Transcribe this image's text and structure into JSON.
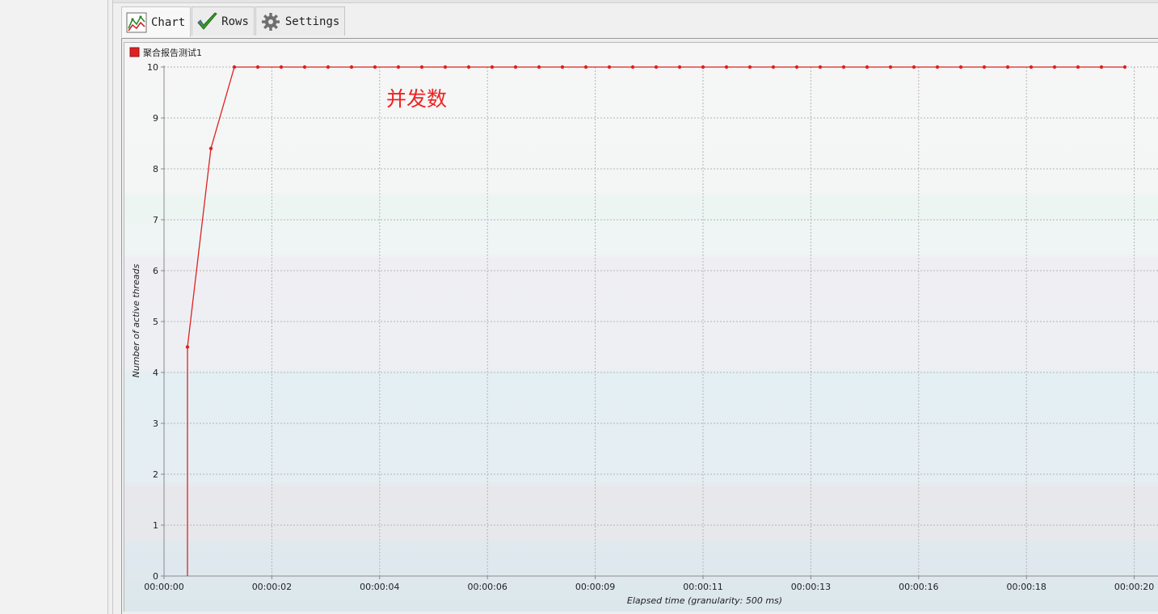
{
  "tabs": [
    {
      "label": "Chart",
      "icon": "chart-icon",
      "active": true
    },
    {
      "label": "Rows",
      "icon": "checkmark-icon",
      "active": false
    },
    {
      "label": "Settings",
      "icon": "gear-icon",
      "active": false
    }
  ],
  "colors": {
    "series": "#dd2222",
    "annotation": "#ee2222",
    "grid": "#b4b4b4"
  },
  "chart_data": {
    "type": "line",
    "series": [
      {
        "name": "聚合报告测试1",
        "x_ms": [
          500,
          500,
          1000,
          1500,
          2000,
          2500,
          3000,
          3500,
          4000,
          4500,
          5000,
          5500,
          6000,
          6500,
          7000,
          7500,
          8000,
          8500,
          9000,
          9500,
          10000,
          10500,
          11000,
          11500,
          12000,
          12500,
          13000,
          13500,
          14000,
          14500,
          15000,
          15500,
          16000,
          16500,
          17000,
          17500,
          18000,
          18500,
          19000,
          19500,
          20000,
          20500
        ],
        "values": [
          0,
          4.5,
          8.4,
          10,
          10,
          10,
          10,
          10,
          10,
          10,
          10,
          10,
          10,
          10,
          10,
          10,
          10,
          10,
          10,
          10,
          10,
          10,
          10,
          10,
          10,
          10,
          10,
          10,
          10,
          10,
          10,
          10,
          10,
          10,
          10,
          10,
          10,
          10,
          10,
          10,
          10,
          10
        ],
        "markers": [
          false,
          true,
          true,
          true,
          true,
          true,
          true,
          true,
          true,
          true,
          true,
          true,
          true,
          true,
          true,
          true,
          true,
          true,
          true,
          true,
          true,
          true,
          true,
          true,
          true,
          true,
          true,
          true,
          true,
          true,
          true,
          true,
          true,
          true,
          true,
          true,
          true,
          true,
          true,
          true,
          true,
          true
        ]
      }
    ],
    "ylabel": "Number of active threads",
    "xlabel": "Elapsed time (granularity: 500 ms)",
    "ylim": [
      0,
      10
    ],
    "yticks": [
      0,
      1,
      2,
      3,
      4,
      5,
      6,
      7,
      8,
      9,
      10
    ],
    "xtick_values_ms": [
      0,
      2300,
      4600,
      6900,
      9200,
      11500,
      13800,
      16100,
      18400,
      20700
    ],
    "xtick_labels": [
      "00:00:00",
      "00:00:02",
      "00:00:04",
      "00:00:06",
      "00:00:09",
      "00:00:11",
      "00:00:13",
      "00:00:16",
      "00:00:18",
      "00:00:20"
    ],
    "legend_position": "top-left",
    "grid": true,
    "annotation": "并发数"
  }
}
